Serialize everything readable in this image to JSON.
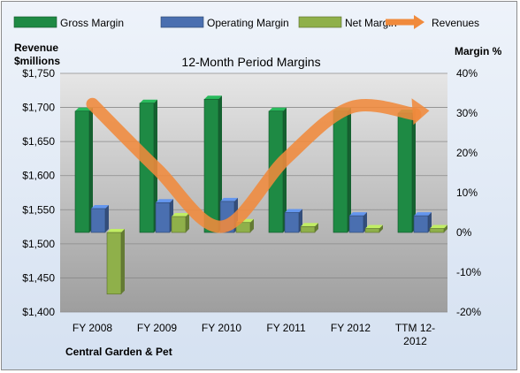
{
  "chart_data": {
    "type": "bar",
    "title": "12-Month Period Margins",
    "footer": "Central Garden & Pet",
    "left_axis_label": [
      "Revenue",
      "$millions"
    ],
    "right_axis_label": "Margin %",
    "categories": [
      [
        "FY 2008"
      ],
      [
        "FY 2009"
      ],
      [
        "FY 2010"
      ],
      [
        "FY 2011"
      ],
      [
        "FY 2012"
      ],
      [
        "TTM 12-",
        "2012"
      ]
    ],
    "left_axis": {
      "ylim": [
        1400,
        1750
      ],
      "ticks": [
        "$1,400",
        "$1,450",
        "$1,500",
        "$1,550",
        "$1,600",
        "$1,650",
        "$1,700",
        "$1,750"
      ]
    },
    "right_axis": {
      "ylim": [
        -20,
        40
      ],
      "ticks": [
        "-20%",
        "-10%",
        "0%",
        "10%",
        "20%",
        "30%",
        "40%"
      ]
    },
    "series": [
      {
        "name": "Gross Margin",
        "axis": "right",
        "color": "#1e8a44",
        "values": [
          30.5,
          32.5,
          33.5,
          30.5,
          30.5,
          30.0
        ]
      },
      {
        "name": "Operating Margin",
        "axis": "right",
        "color": "#4a6fb0",
        "values": [
          6.0,
          7.5,
          7.8,
          5.0,
          4.2,
          4.2
        ]
      },
      {
        "name": "Net Margin",
        "axis": "right",
        "color": "#8fb04a",
        "values": [
          -15.5,
          4.0,
          2.5,
          1.5,
          1.0,
          1.0
        ]
      },
      {
        "name": "Revenues",
        "axis": "left",
        "color": "#f08a3c",
        "type": "line",
        "values": [
          1705,
          1610,
          1525,
          1625,
          1700,
          1690
        ]
      }
    ],
    "legend_placement": "top",
    "grid": true,
    "plot_background": "#c0c0c0"
  }
}
